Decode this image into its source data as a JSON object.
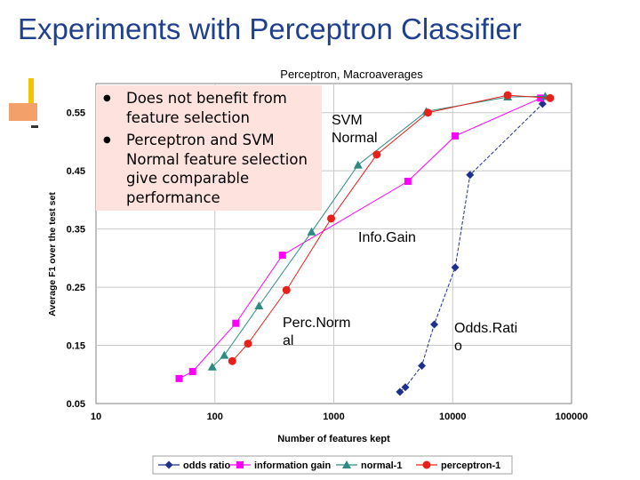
{
  "slide": {
    "title": "Experiments with Perceptron Classifier",
    "bullets": [
      "Does not benefit from feature selection",
      "Perceptron and SVM Normal feature selection give comparable performance"
    ],
    "annotations": [
      "SVM\nNormal",
      "Info.Gain",
      "Perc.Norm\nal",
      "Odds.Rati\no"
    ]
  },
  "colors": {
    "title": "#1f3f8f",
    "callout_bg": "#fde2de",
    "odds_ratio": "#1f2f8f",
    "information_gain": "#ff00ff",
    "normal_1": "#2e8b82",
    "perceptron_1": "#e8201a"
  },
  "chart_data": {
    "type": "line",
    "title": "Perceptron, Macroaverages",
    "xlabel": "Number of features kept",
    "ylabel": "Average F1 over the test set",
    "x_scale": "log",
    "xlim": [
      10,
      100000
    ],
    "ylim": [
      0.05,
      0.6
    ],
    "x_ticks": [
      "10",
      "100",
      "1000",
      "10000",
      "100000"
    ],
    "y_ticks": [
      "0.05",
      "0.15",
      "0.25",
      "0.35",
      "0.45",
      "0.55"
    ],
    "grid": true,
    "legend": "bottom",
    "series": [
      {
        "name": "odds ratio",
        "marker": "diamond",
        "color": "#1f2f8f",
        "points": [
          [
            3600,
            0.07
          ],
          [
            4000,
            0.078
          ],
          [
            5500,
            0.115
          ],
          [
            7000,
            0.186
          ],
          [
            10500,
            0.284
          ],
          [
            14000,
            0.443
          ],
          [
            57000,
            0.565
          ]
        ]
      },
      {
        "name": "information gain",
        "marker": "square",
        "color": "#ff00ff",
        "points": [
          [
            50,
            0.093
          ],
          [
            65,
            0.105
          ],
          [
            150,
            0.188
          ],
          [
            370,
            0.305
          ],
          [
            4200,
            0.432
          ],
          [
            10500,
            0.51
          ],
          [
            55000,
            0.575
          ]
        ]
      },
      {
        "name": "normal-1",
        "marker": "triangle",
        "color": "#2e8b82",
        "points": [
          [
            95,
            0.113
          ],
          [
            120,
            0.133
          ],
          [
            235,
            0.218
          ],
          [
            650,
            0.345
          ],
          [
            1600,
            0.46
          ],
          [
            6000,
            0.552
          ],
          [
            29000,
            0.577
          ],
          [
            60000,
            0.578
          ]
        ]
      },
      {
        "name": "perceptron-1",
        "marker": "circle",
        "color": "#e8201a",
        "points": [
          [
            140,
            0.123
          ],
          [
            190,
            0.153
          ],
          [
            400,
            0.245
          ],
          [
            950,
            0.368
          ],
          [
            2300,
            0.478
          ],
          [
            6200,
            0.55
          ],
          [
            29000,
            0.58
          ],
          [
            66000,
            0.575
          ]
        ]
      }
    ]
  }
}
